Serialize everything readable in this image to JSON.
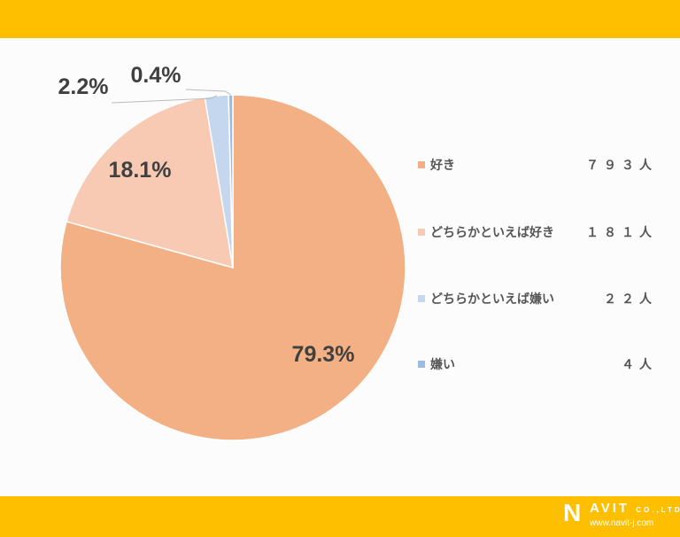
{
  "chart_data": {
    "type": "pie",
    "start": "top",
    "direction": "clockwise",
    "slices": [
      {
        "name": "好き",
        "value": 79.3,
        "label": "79.3%",
        "count": "７９３人",
        "color": "#f3b084"
      },
      {
        "name": "どちらかといえば好き",
        "value": 18.1,
        "label": "18.1%",
        "count": "１８１人",
        "color": "#f8c9b3"
      },
      {
        "name": "どちらかといえば嫌い",
        "value": 2.2,
        "label": "2.2%",
        "count": "２２人",
        "color": "#c5d7ef"
      },
      {
        "name": "嫌い",
        "value": 0.4,
        "label": "0.4%",
        "count": "４人",
        "color": "#9dbbe0"
      }
    ],
    "legend": "right"
  },
  "footer": {
    "logo_name": "NAVIT",
    "logo_suffix": "CO.,LTD.",
    "logo_url": "www.navit-j.com"
  },
  "colors": {
    "band": "#fdbf00"
  }
}
